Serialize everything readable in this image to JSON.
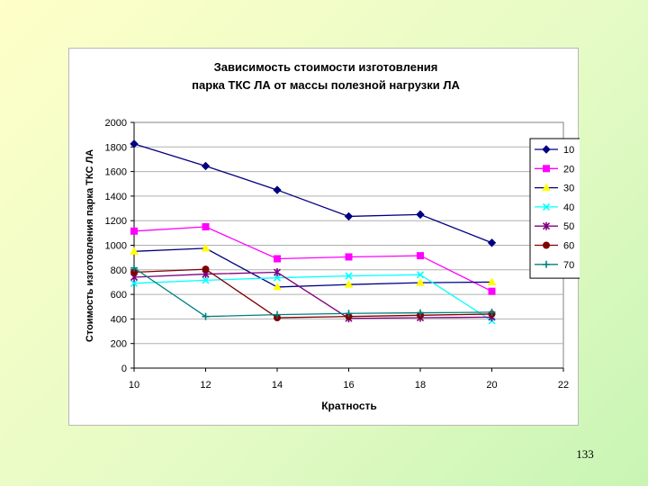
{
  "slide": {
    "page_number": "133"
  },
  "chart_data": {
    "type": "line",
    "title_line1": "Зависимость стоимости изготовления",
    "title_line2": "парка ТКС ЛА от массы полезной нагрузки ЛА",
    "xlabel": "Кратность",
    "ylabel": "Стоимость изготовления парка ТКС ЛА",
    "xlim": [
      10,
      22
    ],
    "ylim": [
      0,
      2000
    ],
    "x_ticks": [
      10,
      12,
      14,
      16,
      18,
      20,
      22
    ],
    "y_ticks": [
      0,
      200,
      400,
      600,
      800,
      1000,
      1200,
      1400,
      1600,
      1800,
      2000
    ],
    "grid": "horizontal",
    "legend_position": "right",
    "x": [
      10,
      12,
      14,
      16,
      18,
      20
    ],
    "series": [
      {
        "name": "10",
        "color": "#000080",
        "marker": "diamond",
        "values": [
          1825,
          1645,
          1450,
          1235,
          1250,
          1020
        ]
      },
      {
        "name": "20",
        "color": "#ff00ff",
        "marker": "square",
        "values": [
          1115,
          1150,
          890,
          905,
          915,
          625
        ]
      },
      {
        "name": "30",
        "color": "#ffff00",
        "marker": "triangle",
        "line_color": "#000080",
        "values": [
          950,
          975,
          660,
          680,
          695,
          700
        ]
      },
      {
        "name": "40",
        "color": "#00ffff",
        "marker": "x",
        "values": [
          690,
          715,
          735,
          750,
          760,
          385
        ]
      },
      {
        "name": "50",
        "color": "#800080",
        "marker": "star",
        "values": [
          740,
          765,
          780,
          405,
          410,
          415
        ]
      },
      {
        "name": "60",
        "color": "#800000",
        "marker": "circle",
        "values": [
          780,
          805,
          410,
          420,
          430,
          440
        ]
      },
      {
        "name": "70",
        "color": "#008080",
        "marker": "plus",
        "values": [
          815,
          420,
          435,
          445,
          450,
          455
        ]
      }
    ]
  }
}
